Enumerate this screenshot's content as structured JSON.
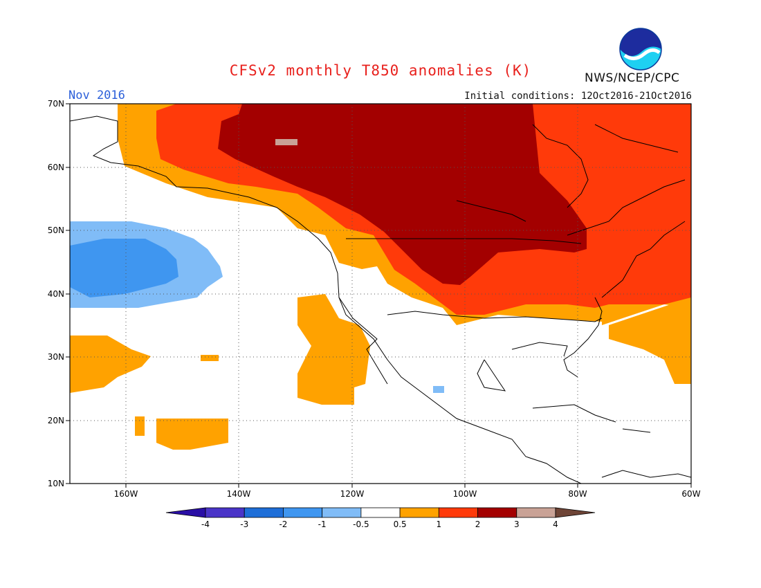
{
  "header": {
    "title": "CFSv2 monthly T850 anomalies (K)",
    "period": "Nov 2016",
    "initial_conditions": "Initial conditions: 12Oct2016-21Oct2016",
    "agency": "NWS/NCEP/CPC",
    "logo_text": "NOAA"
  },
  "map": {
    "variable": "T850 anomalies",
    "units": "K",
    "lat_ticks": [
      "70N",
      "60N",
      "50N",
      "40N",
      "30N",
      "20N",
      "10N"
    ],
    "lon_ticks": [
      "160W",
      "140W",
      "120W",
      "100W",
      "80W",
      "60W"
    ],
    "lon_range": [
      -171,
      -60
    ],
    "lat_range": [
      10,
      70
    ],
    "regions": [
      {
        "label": "Alaska/Canada warm anomaly",
        "category": "1 to 2"
      },
      {
        "label": "Central Canada core warm anomaly",
        "category": "2 to 3"
      },
      {
        "label": "Gulf of Alaska cold anomaly",
        "category": "-1 to -0.5"
      },
      {
        "label": "North Pacific cold core",
        "category": "-2 to -1"
      }
    ]
  },
  "colorbar": {
    "labels": [
      "-4",
      "-3",
      "-2",
      "-1",
      "-0.5",
      "0.5",
      "1",
      "2",
      "3",
      "4"
    ],
    "colors": [
      "#2a0fa6",
      "#4a34c8",
      "#1e6ed8",
      "#3f96f0",
      "#80bcf7",
      "#ffffff",
      "#ffa200",
      "#ff3a0a",
      "#a30000",
      "#c9a296",
      "#6e4436"
    ]
  }
}
